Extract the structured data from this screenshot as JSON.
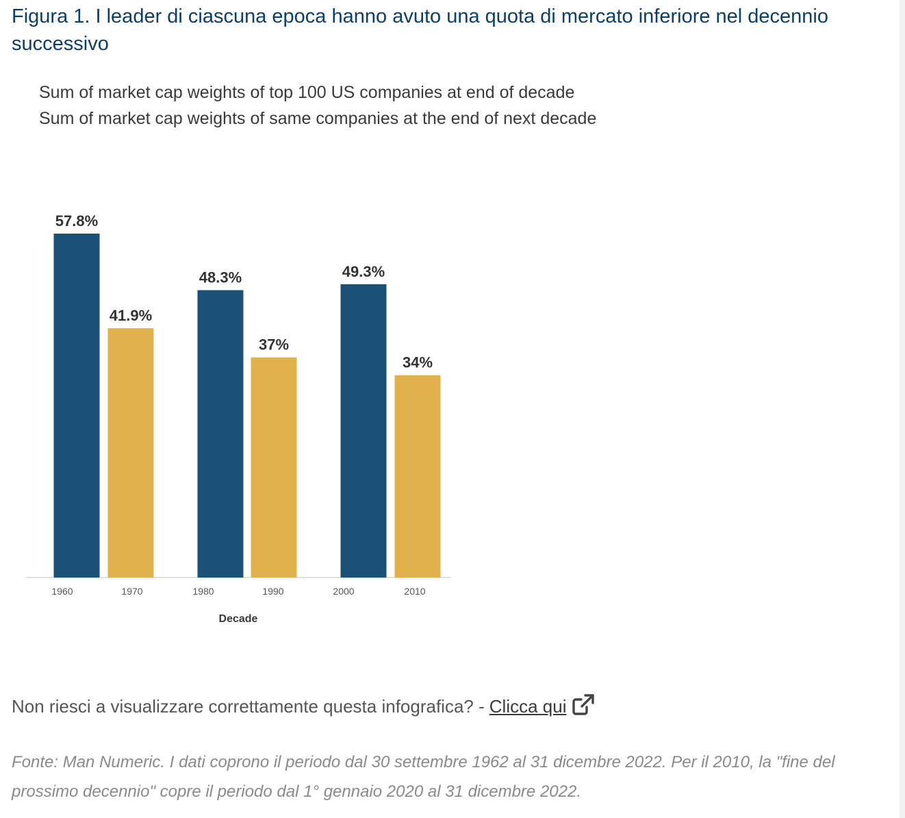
{
  "title": "Figura 1. I leader di ciascuna epoca hanno avuto una quota di mercato inferiore nel decennio successivo",
  "legend": [
    {
      "label": "Sum of market cap weights of top 100 US companies at end of decade",
      "color": "#1c5177"
    },
    {
      "label": "Sum of market cap weights of same companies at the end of next decade",
      "color": "#e0b14d"
    }
  ],
  "chart_data": {
    "type": "bar",
    "categories": [
      "1960",
      "1970",
      "1980",
      "1990",
      "2000",
      "2010"
    ],
    "values": [
      57.8,
      41.9,
      48.3,
      37,
      49.3,
      34
    ],
    "value_labels": [
      "57.8%",
      "41.9%",
      "48.3%",
      "37%",
      "49.3%",
      "34%"
    ],
    "series_index": [
      0,
      1,
      0,
      1,
      0,
      1
    ],
    "xlabel": "Decade",
    "ylabel": "",
    "ylim": [
      0,
      64
    ]
  },
  "notice": {
    "text": "Non riesci a visualizzare correttamente questa infografica? -",
    "link": "Clicca qui",
    "icon": "external-link-icon"
  },
  "source": "Fonte: Man Numeric. I dati coprono il periodo dal 30 settembre 1962 al 31 dicembre 2022. Per il 2010, la \"fine del prossimo decennio\" copre il periodo dal 1° gennaio 2020 al 31 dicembre 2022."
}
